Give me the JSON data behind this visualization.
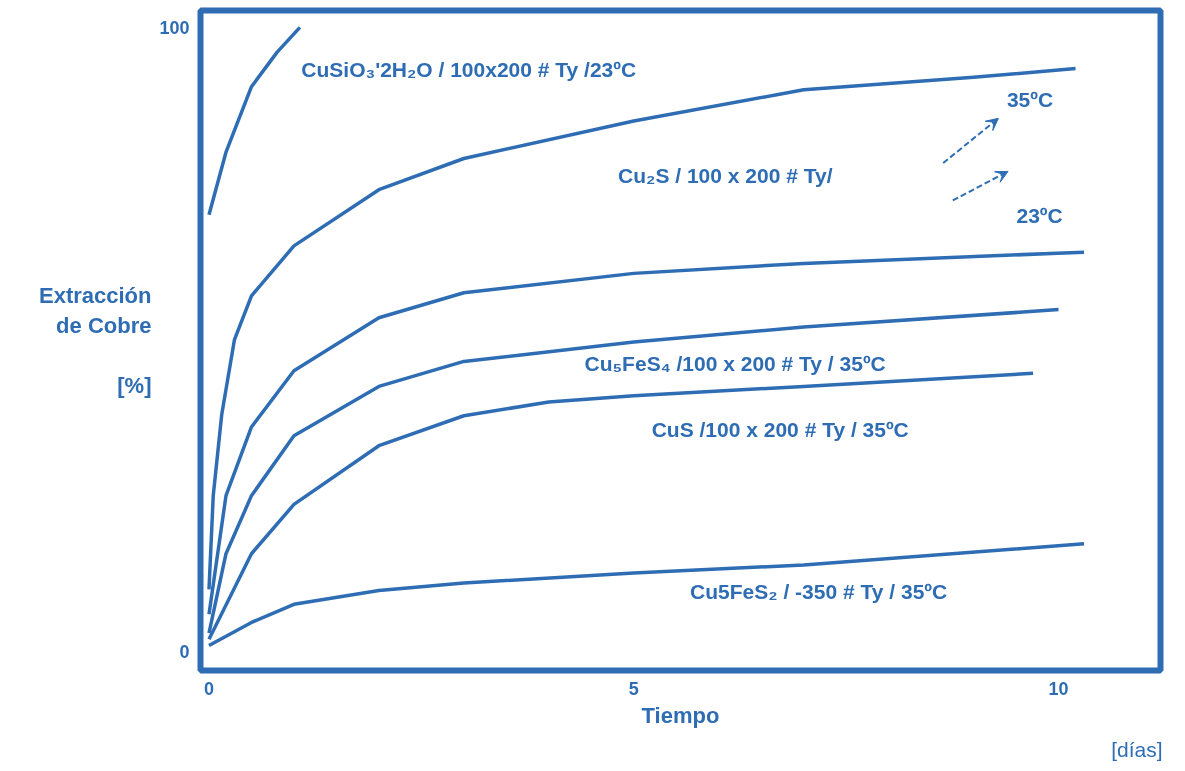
{
  "chart_data": {
    "type": "line",
    "xlabel": "Tiempo",
    "ylabel": "Extracción\nde Cobre\n\n[%]",
    "xlim": [
      -0.1,
      11.2
    ],
    "ylim": [
      -3,
      102.7
    ],
    "xticks": [
      0,
      5,
      10
    ],
    "yticks": [
      0,
      100
    ],
    "grid": false,
    "marker": "none",
    "line_style": "solid",
    "series": [
      {
        "color": "#2e6db4",
        "x": [
          0,
          0.2,
          0.5,
          0.8,
          1.07
        ],
        "values": [
          70,
          80,
          90.5,
          96,
          100
        ]
      },
      {
        "color": "#2e6db4",
        "x": [
          0,
          0.05,
          0.15,
          0.3,
          0.5,
          1,
          2,
          3,
          5,
          7,
          9,
          10.2
        ],
        "values": [
          10,
          25,
          38,
          50,
          57,
          65,
          74,
          79,
          85,
          90,
          92,
          93.4
        ]
      },
      {
        "color": "#2e6db4",
        "x": [
          0,
          0.2,
          0.5,
          1,
          2,
          3,
          5,
          7,
          10.3
        ],
        "values": [
          6,
          25,
          36,
          45,
          53.5,
          57.5,
          60.6,
          62.2,
          64
        ]
      },
      {
        "color": "#2e6db4",
        "x": [
          0,
          0.2,
          0.5,
          1,
          2,
          3,
          5,
          7,
          10
        ],
        "values": [
          3,
          15.7,
          25,
          34.6,
          42.5,
          46.5,
          49.6,
          52,
          54.8
        ]
      },
      {
        "color": "#2e6db4",
        "x": [
          0,
          0.5,
          1,
          2,
          3,
          4,
          5,
          7,
          9.7
        ],
        "values": [
          2,
          15.7,
          23.6,
          33,
          37.8,
          40,
          41,
          42.5,
          44.6
        ]
      },
      {
        "color": "#2e6db4",
        "x": [
          0,
          0.5,
          1,
          2,
          3,
          5,
          7,
          10.3
        ],
        "values": [
          1,
          4.7,
          7.6,
          9.8,
          11,
          12.6,
          13.9,
          17.3
        ]
      }
    ],
    "annotations": [
      "CuSiO₃'2H₂O / 100x200 # Ty /23ºC",
      "Cu₂S / 100 x 200 # Ty/",
      "35ºC",
      "23ºC",
      "Cu₅FeS₄ /100 x 200 # Ty / 35ºC",
      "CuS /100 x 200 # Ty / 35ºC",
      "Cu5FeS₂ / -350 # Ty / 35ºC",
      "[días]"
    ]
  }
}
